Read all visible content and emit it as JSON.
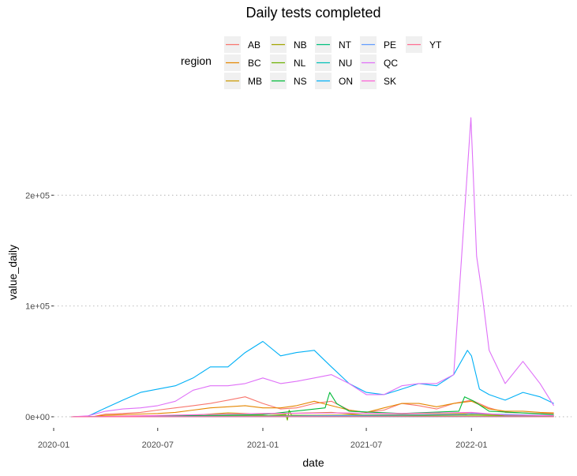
{
  "chart_data": {
    "type": "line",
    "title": "Daily tests completed",
    "xlabel": "date",
    "ylabel": "value_daily",
    "x_ticks": [
      "2020-01",
      "2020-07",
      "2021-01",
      "2021-07",
      "2022-01"
    ],
    "y_ticks": [
      "0e+00",
      "1e+05",
      "2e+05"
    ],
    "xlim": [
      "2020-01-01",
      "2022-06-25"
    ],
    "ylim": [
      -10000,
      275000
    ],
    "grid": true,
    "legend": {
      "title": "region",
      "position": "top",
      "columns": [
        [
          "AB",
          "BC",
          "MB"
        ],
        [
          "NB",
          "NL",
          "NS"
        ],
        [
          "NT",
          "NU",
          "ON"
        ],
        [
          "PE",
          "QC",
          "SK"
        ],
        [
          "YT"
        ]
      ]
    },
    "series": [
      {
        "name": "AB",
        "color": "#F8766D",
        "points": [
          [
            "2020-02-01",
            0
          ],
          [
            "2020-03-10",
            100
          ],
          [
            "2020-04-01",
            2500
          ],
          [
            "2020-05-01",
            3000
          ],
          [
            "2020-06-01",
            4000
          ],
          [
            "2020-07-01",
            6000
          ],
          [
            "2020-08-01",
            8000
          ],
          [
            "2020-09-01",
            10000
          ],
          [
            "2020-10-01",
            12000
          ],
          [
            "2020-11-01",
            15000
          ],
          [
            "2020-12-01",
            18000
          ],
          [
            "2021-01-01",
            12000
          ],
          [
            "2021-02-01",
            7000
          ],
          [
            "2021-03-01",
            8000
          ],
          [
            "2021-04-01",
            12000
          ],
          [
            "2021-05-01",
            14000
          ],
          [
            "2021-06-01",
            6000
          ],
          [
            "2021-07-01",
            4000
          ],
          [
            "2021-08-01",
            6000
          ],
          [
            "2021-09-01",
            12000
          ],
          [
            "2021-10-01",
            10000
          ],
          [
            "2021-11-01",
            7000
          ],
          [
            "2021-12-01",
            12000
          ],
          [
            "2022-01-01",
            15000
          ],
          [
            "2022-02-01",
            8000
          ],
          [
            "2022-03-01",
            4000
          ],
          [
            "2022-04-01",
            3500
          ],
          [
            "2022-05-01",
            3000
          ],
          [
            "2022-05-25",
            3000
          ]
        ]
      },
      {
        "name": "BC",
        "color": "#E58700",
        "points": [
          [
            "2020-02-01",
            0
          ],
          [
            "2020-03-10",
            100
          ],
          [
            "2020-04-01",
            1500
          ],
          [
            "2020-05-01",
            2000
          ],
          [
            "2020-06-01",
            2500
          ],
          [
            "2020-07-01",
            3000
          ],
          [
            "2020-08-01",
            4000
          ],
          [
            "2020-09-01",
            6000
          ],
          [
            "2020-10-01",
            8000
          ],
          [
            "2020-11-01",
            9000
          ],
          [
            "2020-12-01",
            10000
          ],
          [
            "2021-01-01",
            8000
          ],
          [
            "2021-02-01",
            8000
          ],
          [
            "2021-03-01",
            10000
          ],
          [
            "2021-04-01",
            14000
          ],
          [
            "2021-05-01",
            10000
          ],
          [
            "2021-06-01",
            6000
          ],
          [
            "2021-07-01",
            4000
          ],
          [
            "2021-08-01",
            8000
          ],
          [
            "2021-09-01",
            12000
          ],
          [
            "2021-10-01",
            12000
          ],
          [
            "2021-11-01",
            9000
          ],
          [
            "2021-12-01",
            12000
          ],
          [
            "2022-01-01",
            14000
          ],
          [
            "2022-02-01",
            7000
          ],
          [
            "2022-03-01",
            5000
          ],
          [
            "2022-04-01",
            5000
          ],
          [
            "2022-05-01",
            4000
          ],
          [
            "2022-05-25",
            3500
          ]
        ]
      },
      {
        "name": "MB",
        "color": "#C99800",
        "points": [
          [
            "2020-02-01",
            0
          ],
          [
            "2020-03-10",
            100
          ],
          [
            "2020-04-01",
            500
          ],
          [
            "2020-06-01",
            800
          ],
          [
            "2020-09-01",
            1500
          ],
          [
            "2020-11-01",
            3500
          ],
          [
            "2021-01-01",
            2500
          ],
          [
            "2021-05-01",
            4000
          ],
          [
            "2021-07-01",
            1500
          ],
          [
            "2021-10-01",
            2000
          ],
          [
            "2022-01-01",
            3000
          ],
          [
            "2022-03-01",
            1500
          ],
          [
            "2022-05-25",
            1000
          ]
        ]
      },
      {
        "name": "NB",
        "color": "#A3A500",
        "points": [
          [
            "2020-02-01",
            0
          ],
          [
            "2020-03-10",
            50
          ],
          [
            "2020-06-01",
            300
          ],
          [
            "2020-11-01",
            800
          ],
          [
            "2021-01-01",
            1000
          ],
          [
            "2021-05-01",
            1500
          ],
          [
            "2021-09-01",
            2000
          ],
          [
            "2022-01-01",
            2500
          ],
          [
            "2022-05-25",
            800
          ]
        ]
      },
      {
        "name": "NL",
        "color": "#6BB100",
        "points": [
          [
            "2020-02-01",
            0
          ],
          [
            "2020-03-10",
            50
          ],
          [
            "2020-06-01",
            200
          ],
          [
            "2020-11-01",
            500
          ],
          [
            "2021-01-01",
            600
          ],
          [
            "2021-02-10",
            2000
          ],
          [
            "2021-02-13",
            -3000
          ],
          [
            "2021-02-16",
            6000
          ],
          [
            "2021-02-20",
            1500
          ],
          [
            "2021-05-01",
            800
          ],
          [
            "2021-09-01",
            900
          ],
          [
            "2022-01-01",
            1500
          ],
          [
            "2022-05-25",
            500
          ]
        ]
      },
      {
        "name": "NS",
        "color": "#00BA38",
        "points": [
          [
            "2020-02-01",
            0
          ],
          [
            "2020-03-10",
            50
          ],
          [
            "2020-06-01",
            400
          ],
          [
            "2020-11-01",
            1500
          ],
          [
            "2021-01-01",
            2000
          ],
          [
            "2021-04-20",
            8000
          ],
          [
            "2021-04-28",
            22000
          ],
          [
            "2021-05-10",
            12000
          ],
          [
            "2021-06-01",
            5000
          ],
          [
            "2021-09-01",
            3000
          ],
          [
            "2021-12-10",
            5000
          ],
          [
            "2021-12-20",
            18000
          ],
          [
            "2022-01-05",
            14000
          ],
          [
            "2022-02-01",
            5000
          ],
          [
            "2022-05-25",
            2000
          ]
        ]
      },
      {
        "name": "NT",
        "color": "#00BF7D",
        "points": [
          [
            "2020-02-01",
            0
          ],
          [
            "2020-06-01",
            100
          ],
          [
            "2021-01-01",
            200
          ],
          [
            "2022-01-01",
            300
          ],
          [
            "2022-05-25",
            100
          ]
        ]
      },
      {
        "name": "NU",
        "color": "#00C0B8",
        "points": [
          [
            "2020-02-01",
            0
          ],
          [
            "2020-06-01",
            50
          ],
          [
            "2021-01-01",
            100
          ],
          [
            "2022-01-01",
            150
          ],
          [
            "2022-05-25",
            50
          ]
        ]
      },
      {
        "name": "ON",
        "color": "#00B0F6",
        "points": [
          [
            "2020-02-01",
            0
          ],
          [
            "2020-03-01",
            500
          ],
          [
            "2020-04-01",
            8000
          ],
          [
            "2020-05-01",
            15000
          ],
          [
            "2020-06-01",
            22000
          ],
          [
            "2020-07-01",
            25000
          ],
          [
            "2020-08-01",
            28000
          ],
          [
            "2020-09-01",
            35000
          ],
          [
            "2020-10-01",
            45000
          ],
          [
            "2020-11-01",
            45000
          ],
          [
            "2020-12-01",
            58000
          ],
          [
            "2021-01-01",
            68000
          ],
          [
            "2021-02-01",
            55000
          ],
          [
            "2021-03-01",
            58000
          ],
          [
            "2021-04-01",
            60000
          ],
          [
            "2021-05-01",
            45000
          ],
          [
            "2021-06-01",
            30000
          ],
          [
            "2021-07-01",
            22000
          ],
          [
            "2021-08-01",
            20000
          ],
          [
            "2021-09-01",
            25000
          ],
          [
            "2021-10-01",
            30000
          ],
          [
            "2021-11-01",
            28000
          ],
          [
            "2021-12-01",
            38000
          ],
          [
            "2021-12-25",
            60000
          ],
          [
            "2022-01-01",
            55000
          ],
          [
            "2022-01-15",
            25000
          ],
          [
            "2022-02-01",
            20000
          ],
          [
            "2022-03-01",
            15000
          ],
          [
            "2022-04-01",
            22000
          ],
          [
            "2022-05-01",
            18000
          ],
          [
            "2022-05-25",
            12000
          ]
        ]
      },
      {
        "name": "PE",
        "color": "#619CFF",
        "points": [
          [
            "2020-02-01",
            0
          ],
          [
            "2020-06-01",
            300
          ],
          [
            "2021-01-01",
            500
          ],
          [
            "2021-12-20",
            2000
          ],
          [
            "2022-01-01",
            3000
          ],
          [
            "2022-05-25",
            1000
          ]
        ]
      },
      {
        "name": "QC",
        "color": "#DF70F8",
        "points": [
          [
            "2020-02-01",
            0
          ],
          [
            "2020-03-01",
            800
          ],
          [
            "2020-04-01",
            5000
          ],
          [
            "2020-05-01",
            7000
          ],
          [
            "2020-06-01",
            8000
          ],
          [
            "2020-07-01",
            10000
          ],
          [
            "2020-08-01",
            14000
          ],
          [
            "2020-09-01",
            24000
          ],
          [
            "2020-10-01",
            28000
          ],
          [
            "2020-11-01",
            28000
          ],
          [
            "2020-12-01",
            30000
          ],
          [
            "2021-01-01",
            35000
          ],
          [
            "2021-02-01",
            30000
          ],
          [
            "2021-03-01",
            32000
          ],
          [
            "2021-04-01",
            35000
          ],
          [
            "2021-05-01",
            38000
          ],
          [
            "2021-06-01",
            30000
          ],
          [
            "2021-07-01",
            20000
          ],
          [
            "2021-08-01",
            20000
          ],
          [
            "2021-09-01",
            28000
          ],
          [
            "2021-10-01",
            30000
          ],
          [
            "2021-11-01",
            30000
          ],
          [
            "2021-12-01",
            38000
          ],
          [
            "2021-12-31",
            270000
          ],
          [
            "2022-01-10",
            145000
          ],
          [
            "2022-01-20",
            110000
          ],
          [
            "2022-02-01",
            60000
          ],
          [
            "2022-03-01",
            30000
          ],
          [
            "2022-04-01",
            50000
          ],
          [
            "2022-05-01",
            30000
          ],
          [
            "2022-05-25",
            10000
          ]
        ]
      },
      {
        "name": "SK",
        "color": "#FB61D7",
        "points": [
          [
            "2020-02-01",
            0
          ],
          [
            "2020-03-10",
            100
          ],
          [
            "2020-06-01",
            800
          ],
          [
            "2020-11-01",
            2500
          ],
          [
            "2021-01-01",
            3000
          ],
          [
            "2021-05-01",
            3500
          ],
          [
            "2021-09-01",
            3000
          ],
          [
            "2022-01-01",
            4000
          ],
          [
            "2022-03-01",
            1500
          ],
          [
            "2022-05-25",
            1000
          ]
        ]
      },
      {
        "name": "YT",
        "color": "#FF6C91",
        "points": [
          [
            "2020-02-01",
            0
          ],
          [
            "2020-06-01",
            50
          ],
          [
            "2021-01-01",
            100
          ],
          [
            "2022-01-01",
            200
          ],
          [
            "2022-05-25",
            50
          ]
        ]
      }
    ]
  }
}
